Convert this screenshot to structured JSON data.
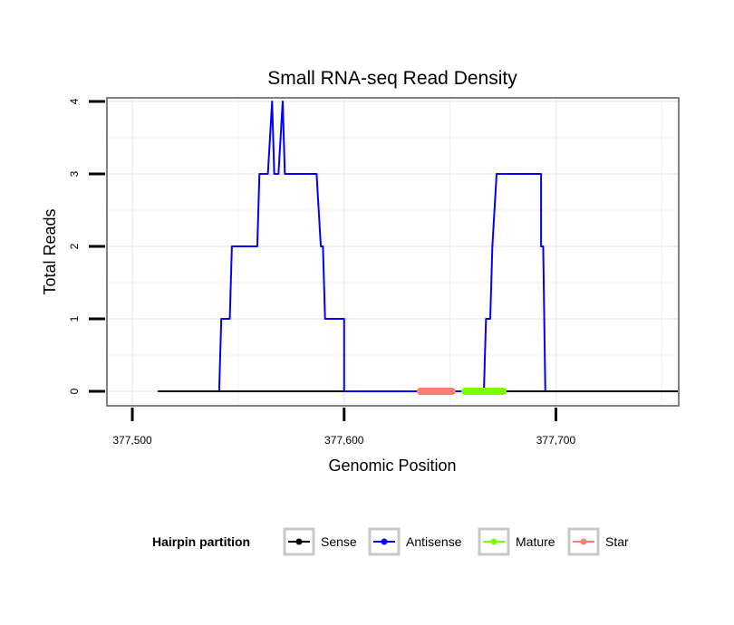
{
  "chart_data": {
    "type": "line",
    "title": "Small RNA-seq Read Density",
    "xlabel": "Genomic Position",
    "ylabel": "Total Reads",
    "xlim": [
      377488,
      377758
    ],
    "ylim": [
      -0.2,
      4.05
    ],
    "x_ticks": [
      377500,
      377600,
      377700
    ],
    "x_tick_labels": [
      "377,500",
      "377,600",
      "377,700"
    ],
    "y_ticks": [
      0,
      1,
      2,
      3,
      4
    ],
    "y_tick_labels": [
      "0",
      "1",
      "2",
      "3",
      "4"
    ],
    "grid": true,
    "legend": {
      "title": "Hairpin partition",
      "position": "bottom",
      "entries": [
        {
          "label": "Sense",
          "color": "#000000"
        },
        {
          "label": "Antisense",
          "color": "#0000ff"
        },
        {
          "label": "Mature",
          "color": "#7cfc00"
        },
        {
          "label": "Star",
          "color": "#fa8072"
        }
      ]
    },
    "series": [
      {
        "name": "Sense",
        "color": "#000000",
        "points": [
          [
            377512,
            0
          ],
          [
            377758,
            0
          ]
        ]
      },
      {
        "name": "Antisense",
        "color": "#0000ff",
        "points": [
          [
            377541,
            0
          ],
          [
            377542,
            1
          ],
          [
            377546,
            1
          ],
          [
            377547,
            2
          ],
          [
            377559,
            2
          ],
          [
            377560,
            3
          ],
          [
            377564,
            3
          ],
          [
            377566,
            4
          ],
          [
            377567,
            3
          ],
          [
            377569,
            3
          ],
          [
            377571,
            4
          ],
          [
            377572,
            3
          ],
          [
            377587,
            3
          ],
          [
            377589,
            2
          ],
          [
            377590,
            2
          ],
          [
            377591,
            1
          ],
          [
            377600,
            1
          ],
          [
            377600,
            0
          ],
          [
            377666,
            0
          ],
          [
            377667,
            1
          ],
          [
            377669,
            1
          ],
          [
            377670,
            2
          ],
          [
            377672,
            3
          ],
          [
            377693,
            3
          ],
          [
            377693,
            2
          ],
          [
            377694,
            2
          ],
          [
            377695,
            0
          ]
        ]
      },
      {
        "name": "Mature",
        "color": "#7cfc00",
        "points": [
          [
            377657,
            0
          ],
          [
            377675,
            0
          ]
        ]
      },
      {
        "name": "Star",
        "color": "#fa8072",
        "points": [
          [
            377636,
            0
          ],
          [
            377651,
            0
          ]
        ]
      }
    ]
  }
}
